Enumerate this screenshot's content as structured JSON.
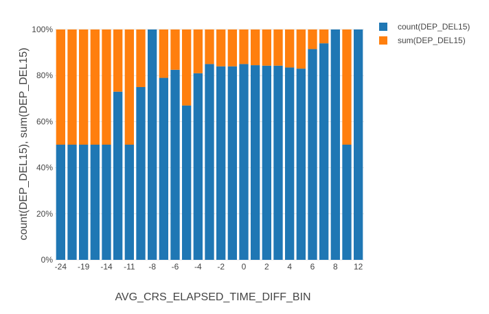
{
  "chart_data": {
    "type": "bar",
    "stacked": true,
    "normalized": "percent",
    "categories": [
      "-24",
      "-22",
      "-19",
      "-17",
      "-14",
      "-12",
      "-11",
      "-9",
      "-8",
      "-7",
      "-6",
      "-5",
      "-4",
      "-3",
      "-2",
      "-1",
      "0",
      "1",
      "2",
      "3",
      "4",
      "5",
      "6",
      "7",
      "8",
      "10",
      "12"
    ],
    "series": [
      {
        "name": "count(DEP_DEL15)",
        "color": "#1f77b4",
        "values": [
          50,
          50,
          50,
          50,
          50,
          73,
          50,
          75,
          100,
          79,
          82.5,
          67,
          81,
          85,
          84,
          84,
          85,
          84.5,
          84.3,
          84.3,
          83.5,
          83,
          91.5,
          94,
          100,
          50,
          100
        ]
      },
      {
        "name": "sum(DEP_DEL15)",
        "color": "#ff7f0e",
        "values": [
          50,
          50,
          50,
          50,
          50,
          27,
          50,
          25,
          0,
          21,
          17.5,
          33,
          19,
          15,
          16,
          16,
          15,
          15.5,
          15.7,
          15.7,
          16.5,
          17,
          8.5,
          6,
          0,
          50,
          0
        ]
      }
    ],
    "xlabel": "AVG_CRS_ELAPSED_TIME_DIFF_BIN",
    "ylabel": "count(DEP_DEL15), sum(DEP_DEL15)",
    "x_tick_labels": [
      "-24",
      "-19",
      "-14",
      "-11",
      "-8",
      "-6",
      "-4",
      "-2",
      "0",
      "2",
      "4",
      "6",
      "8",
      "12"
    ],
    "y_tick_labels": [
      "0%",
      "20%",
      "40%",
      "60%",
      "80%",
      "100%"
    ],
    "ylim": [
      0,
      100
    ],
    "grid": true,
    "legend_position": "top-right"
  }
}
